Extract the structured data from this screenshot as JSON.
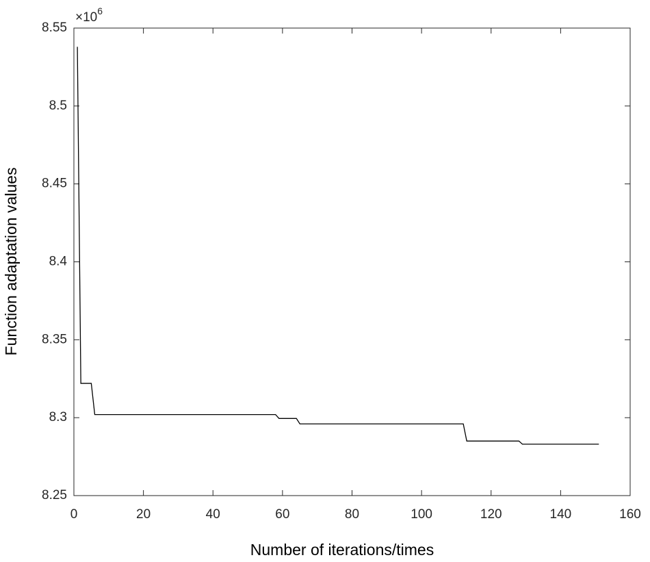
{
  "chart_data": {
    "type": "line",
    "x_label": "Number of iterations/times",
    "y_label": "Function adaptation values",
    "y_multiplier": {
      "base": "×10",
      "exponent": "6"
    },
    "x": [
      1,
      2,
      5,
      6,
      58,
      59,
      64,
      65,
      112,
      113,
      128,
      129,
      151
    ],
    "series": [
      {
        "color": "#000000",
        "values": [
          8.538,
          8.322,
          8.322,
          8.302,
          8.302,
          8.2995,
          8.2995,
          8.296,
          8.296,
          8.285,
          8.285,
          8.283,
          8.283
        ]
      }
    ],
    "xlim": [
      0,
      160
    ],
    "xticks": [
      0,
      20,
      40,
      60,
      80,
      100,
      120,
      140,
      160
    ],
    "ylim": [
      8.25,
      8.55
    ],
    "yticks": [
      8.25,
      8.3,
      8.35,
      8.4,
      8.45,
      8.5,
      8.55
    ],
    "grid": false
  }
}
